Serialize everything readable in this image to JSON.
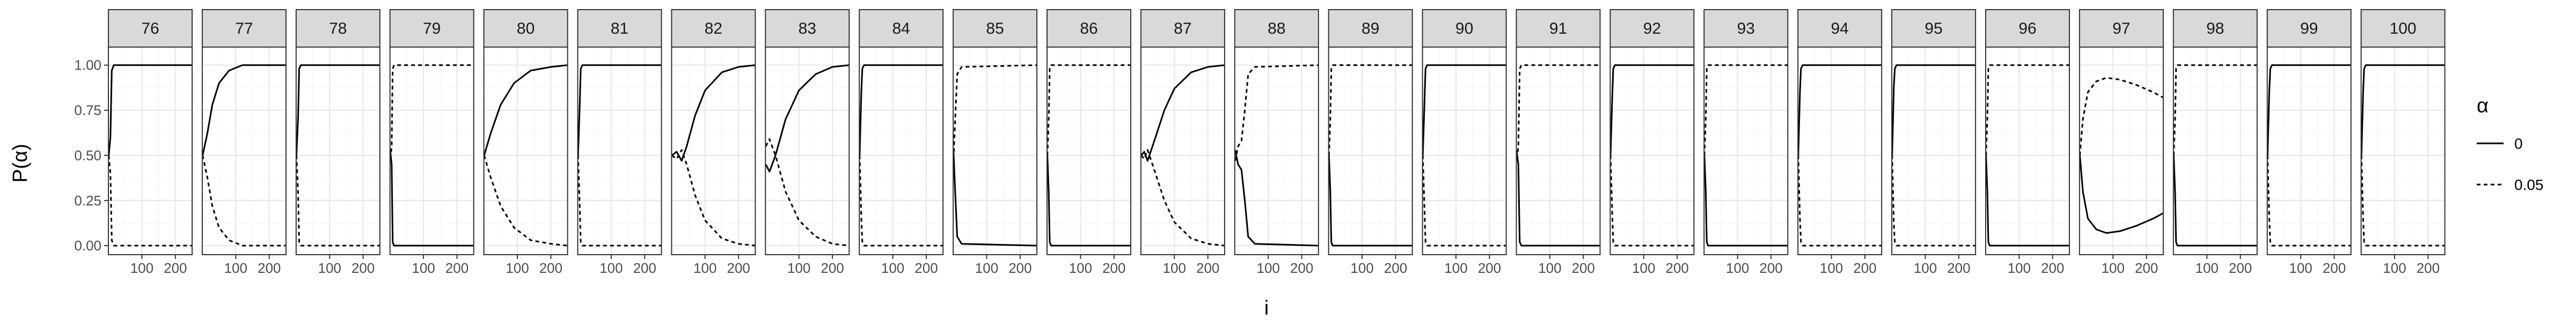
{
  "chart_data": {
    "type": "line",
    "facet_title": "",
    "ylabel": "P(α)",
    "xlabel": "i",
    "ylim": [
      -0.05,
      1.1
    ],
    "xlim": [
      0,
      250
    ],
    "y_ticks": [
      "0.00",
      "0.25",
      "0.50",
      "0.75",
      "1.00"
    ],
    "y_tick_values": [
      0,
      0.25,
      0.5,
      0.75,
      1.0
    ],
    "x_ticks": [
      "100",
      "200"
    ],
    "x_tick_values": [
      100,
      200
    ],
    "grid": true,
    "legend": {
      "title": "α",
      "placement": "right",
      "entries": [
        {
          "label": "0",
          "style": "solid"
        },
        {
          "label": "0.05",
          "style": "dashed"
        }
      ]
    },
    "series_names": [
      "0",
      "0.05"
    ],
    "facets": [
      {
        "label": "76",
        "mode": "fast",
        "p": [
          [
            1,
            0.5
          ],
          [
            6,
            0.6
          ],
          [
            10,
            0.97
          ],
          [
            16,
            1
          ],
          [
            250,
            1
          ]
        ]
      },
      {
        "label": "77",
        "mode": "smooth",
        "p": [
          [
            1,
            0.5
          ],
          [
            15,
            0.62
          ],
          [
            30,
            0.78
          ],
          [
            50,
            0.9
          ],
          [
            80,
            0.97
          ],
          [
            120,
            1
          ],
          [
            250,
            1
          ]
        ]
      },
      {
        "label": "78",
        "mode": "fast",
        "p": [
          [
            1,
            0.5
          ],
          [
            6,
            0.72
          ],
          [
            9,
            0.98
          ],
          [
            14,
            1
          ],
          [
            250,
            1
          ]
        ]
      },
      {
        "label": "79",
        "mode": "fast",
        "p": [
          [
            1,
            0.52
          ],
          [
            5,
            0.45
          ],
          [
            8,
            0.02
          ],
          [
            12,
            0
          ],
          [
            250,
            0
          ]
        ]
      },
      {
        "label": "80",
        "mode": "smooth",
        "p": [
          [
            1,
            0.5
          ],
          [
            20,
            0.62
          ],
          [
            50,
            0.78
          ],
          [
            90,
            0.9
          ],
          [
            140,
            0.97
          ],
          [
            200,
            0.99
          ],
          [
            250,
            1
          ]
        ]
      },
      {
        "label": "81",
        "mode": "fast",
        "p": [
          [
            1,
            0.5
          ],
          [
            6,
            0.78
          ],
          [
            9,
            0.98
          ],
          [
            14,
            1
          ],
          [
            250,
            1
          ]
        ]
      },
      {
        "label": "82",
        "mode": "smooth",
        "p": [
          [
            1,
            0.5
          ],
          [
            15,
            0.52
          ],
          [
            30,
            0.47
          ],
          [
            45,
            0.55
          ],
          [
            70,
            0.72
          ],
          [
            100,
            0.86
          ],
          [
            150,
            0.96
          ],
          [
            200,
            0.99
          ],
          [
            250,
            1
          ]
        ]
      },
      {
        "label": "83",
        "mode": "smooth",
        "p": [
          [
            1,
            0.45
          ],
          [
            12,
            0.41
          ],
          [
            30,
            0.5
          ],
          [
            60,
            0.7
          ],
          [
            100,
            0.86
          ],
          [
            150,
            0.95
          ],
          [
            200,
            0.99
          ],
          [
            250,
            1
          ]
        ]
      },
      {
        "label": "84",
        "mode": "fast",
        "p": [
          [
            1,
            0.5
          ],
          [
            6,
            0.85
          ],
          [
            9,
            0.98
          ],
          [
            14,
            1
          ],
          [
            250,
            1
          ]
        ]
      },
      {
        "label": "85",
        "mode": "fast",
        "p": [
          [
            1,
            0.52
          ],
          [
            6,
            0.3
          ],
          [
            12,
            0.05
          ],
          [
            25,
            0.01
          ],
          [
            250,
            0
          ]
        ]
      },
      {
        "label": "86",
        "mode": "fast",
        "p": [
          [
            1,
            0.5
          ],
          [
            5,
            0.3
          ],
          [
            8,
            0.02
          ],
          [
            12,
            0
          ],
          [
            250,
            0
          ]
        ]
      },
      {
        "label": "87",
        "mode": "smooth",
        "p": [
          [
            1,
            0.5
          ],
          [
            10,
            0.52
          ],
          [
            20,
            0.47
          ],
          [
            40,
            0.58
          ],
          [
            70,
            0.75
          ],
          [
            100,
            0.87
          ],
          [
            150,
            0.96
          ],
          [
            200,
            0.99
          ],
          [
            250,
            1
          ]
        ]
      },
      {
        "label": "88",
        "mode": "smooth",
        "p": [
          [
            1,
            0.53
          ],
          [
            10,
            0.45
          ],
          [
            20,
            0.42
          ],
          [
            30,
            0.25
          ],
          [
            40,
            0.05
          ],
          [
            60,
            0.01
          ],
          [
            250,
            0
          ]
        ]
      },
      {
        "label": "89",
        "mode": "fast",
        "p": [
          [
            1,
            0.5
          ],
          [
            5,
            0.3
          ],
          [
            8,
            0.02
          ],
          [
            12,
            0
          ],
          [
            250,
            0
          ]
        ]
      },
      {
        "label": "90",
        "mode": "fast",
        "p": [
          [
            1,
            0.5
          ],
          [
            6,
            0.8
          ],
          [
            9,
            0.98
          ],
          [
            14,
            1
          ],
          [
            250,
            1
          ]
        ]
      },
      {
        "label": "91",
        "mode": "fast",
        "p": [
          [
            1,
            0.52
          ],
          [
            6,
            0.45
          ],
          [
            10,
            0.02
          ],
          [
            15,
            0
          ],
          [
            250,
            0
          ]
        ]
      },
      {
        "label": "92",
        "mode": "fast",
        "p": [
          [
            1,
            0.5
          ],
          [
            6,
            0.82
          ],
          [
            9,
            0.98
          ],
          [
            14,
            1
          ],
          [
            250,
            1
          ]
        ]
      },
      {
        "label": "93",
        "mode": "fast",
        "p": [
          [
            1,
            0.5
          ],
          [
            5,
            0.3
          ],
          [
            8,
            0.02
          ],
          [
            12,
            0
          ],
          [
            250,
            0
          ]
        ]
      },
      {
        "label": "94",
        "mode": "fast",
        "p": [
          [
            1,
            0.5
          ],
          [
            6,
            0.85
          ],
          [
            9,
            0.98
          ],
          [
            14,
            1
          ],
          [
            250,
            1
          ]
        ]
      },
      {
        "label": "95",
        "mode": "fast",
        "p": [
          [
            1,
            0.5
          ],
          [
            6,
            0.88
          ],
          [
            9,
            0.98
          ],
          [
            14,
            1
          ],
          [
            250,
            1
          ]
        ]
      },
      {
        "label": "96",
        "mode": "fast",
        "p": [
          [
            1,
            0.5
          ],
          [
            5,
            0.3
          ],
          [
            8,
            0.02
          ],
          [
            12,
            0
          ],
          [
            250,
            0
          ]
        ]
      },
      {
        "label": "97",
        "mode": "smooth",
        "p": [
          [
            1,
            0.5
          ],
          [
            10,
            0.3
          ],
          [
            25,
            0.15
          ],
          [
            50,
            0.09
          ],
          [
            80,
            0.07
          ],
          [
            120,
            0.08
          ],
          [
            170,
            0.11
          ],
          [
            220,
            0.15
          ],
          [
            250,
            0.18
          ]
        ]
      },
      {
        "label": "98",
        "mode": "fast",
        "p": [
          [
            1,
            0.5
          ],
          [
            5,
            0.3
          ],
          [
            8,
            0.02
          ],
          [
            12,
            0
          ],
          [
            250,
            0
          ]
        ]
      },
      {
        "label": "99",
        "mode": "fast",
        "p": [
          [
            1,
            0.5
          ],
          [
            6,
            0.85
          ],
          [
            9,
            0.98
          ],
          [
            14,
            1
          ],
          [
            250,
            1
          ]
        ]
      },
      {
        "label": "100",
        "mode": "fast",
        "p": [
          [
            1,
            0.5
          ],
          [
            6,
            0.85
          ],
          [
            9,
            0.98
          ],
          [
            14,
            1
          ],
          [
            250,
            1
          ]
        ]
      }
    ]
  }
}
